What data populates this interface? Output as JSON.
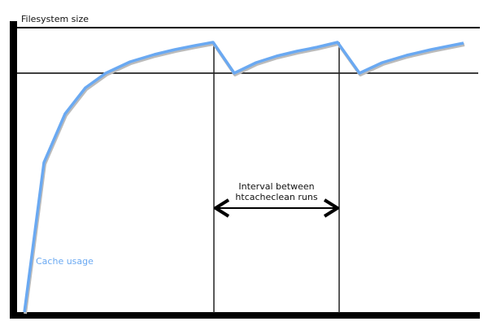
{
  "diagram": {
    "y_axis_label": "Filesystem size",
    "curve_label": "Cache usage",
    "interval_label_line1": "Interval between",
    "interval_label_line2": "htcacheclean runs",
    "colors": {
      "curve": "#6aa9f2",
      "lines": "#000000"
    }
  }
}
